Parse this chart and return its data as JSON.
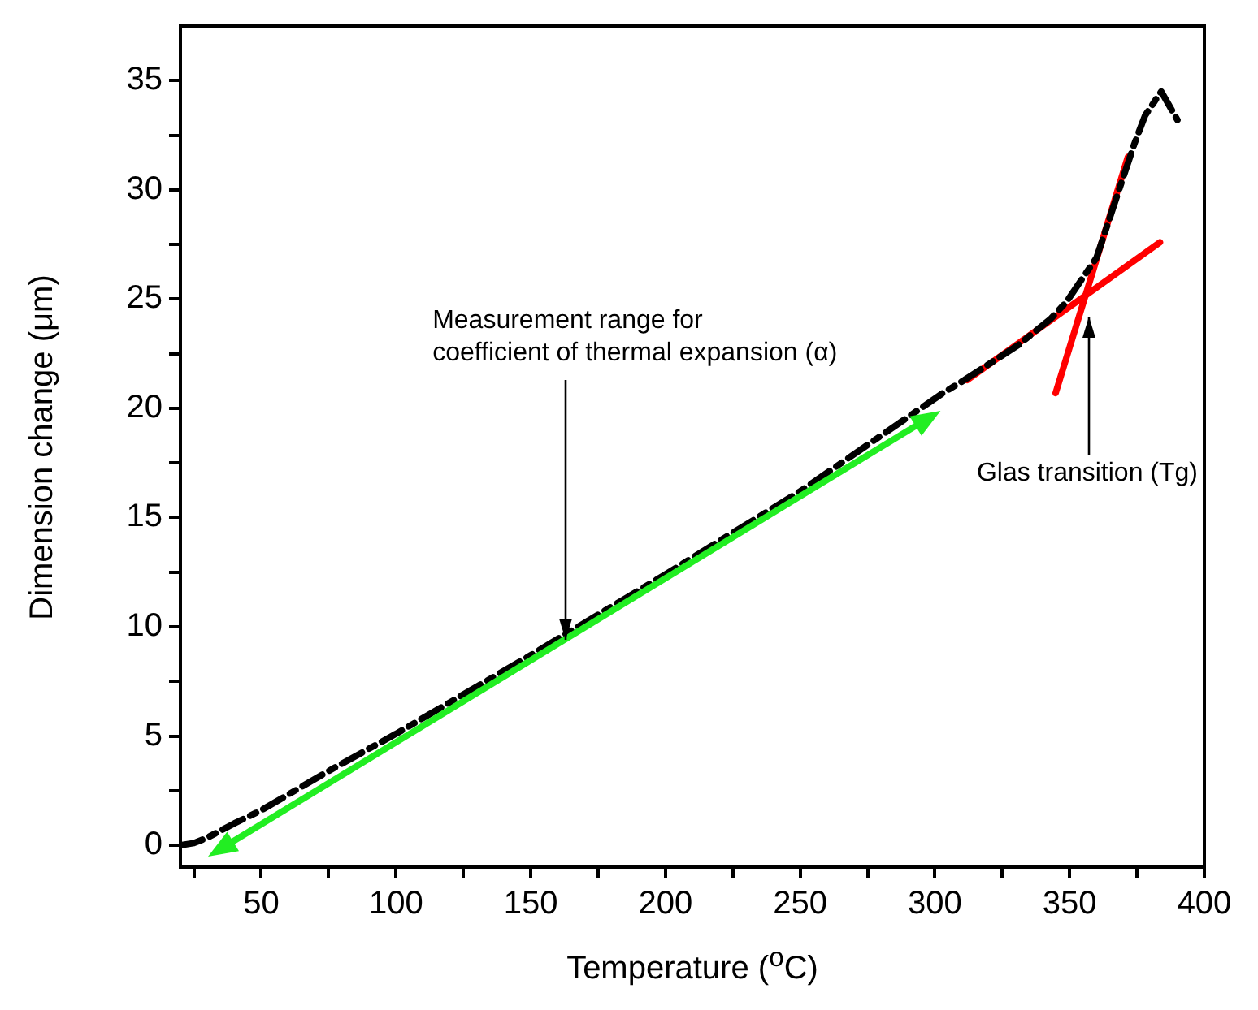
{
  "chart_data": {
    "type": "line",
    "xlabel": "Temperature ($^{o}$C)",
    "ylabel": "Dimension change (μm)",
    "xlim": [
      20,
      400
    ],
    "xticks": [
      {
        "value": 25,
        "label": null
      },
      50,
      {
        "value": 75,
        "label": null
      },
      100,
      {
        "value": 125,
        "label": null
      },
      150,
      {
        "value": 175,
        "label": null
      },
      200,
      {
        "value": 225,
        "label": null
      },
      250,
      {
        "value": 275,
        "label": null
      },
      300,
      {
        "value": 325,
        "label": null
      },
      350,
      {
        "value": 375,
        "label": null
      },
      400
    ],
    "ylim": [
      -1,
      37.5
    ],
    "yticks": [
      0,
      {
        "value": 2.5,
        "label": null
      },
      5,
      {
        "value": 7.5,
        "label": null
      },
      10,
      {
        "value": 12.5,
        "label": null
      },
      15,
      {
        "value": 17.5,
        "label": null
      },
      20,
      {
        "value": 22.5,
        "label": null
      },
      25,
      {
        "value": 27.5,
        "label": null
      },
      30,
      {
        "value": 32.5,
        "label": null
      },
      35
    ],
    "grid": false,
    "marker": "none",
    "series": [
      {
        "color": "#000000",
        "line_style": "dashed",
        "x": [
          20,
          25,
          30,
          40,
          50,
          75,
          100,
          150,
          200,
          250,
          303,
          311,
          331,
          343,
          349,
          360,
          374,
          378,
          384,
          390
        ],
        "values": [
          0,
          0.1,
          0.35,
          1.0,
          1.6,
          3.4,
          5.1,
          8.7,
          12.4,
          16.2,
          20.7,
          21.3,
          22.9,
          24.1,
          24.9,
          26.9,
          32.1,
          33.4,
          34.5,
          33.2
        ]
      },
      {
        "color": "#ff0000",
        "line_style": "solid",
        "x": [
          312,
          383.5
        ],
        "values": [
          21.3,
          27.6
        ]
      },
      {
        "color": "#ff0000",
        "line_style": "solid",
        "x": [
          344.8,
          371.6
        ],
        "values": [
          20.7,
          31.5
        ]
      }
    ],
    "annotations": [
      {
        "text": "Measurement range for\ncoefficient of thermal expansion (α)",
        "x": 163,
        "y": 9.4
      },
      {
        "text": "Glas transition (Tg)",
        "x": 357,
        "y": 24.2
      }
    ]
  }
}
